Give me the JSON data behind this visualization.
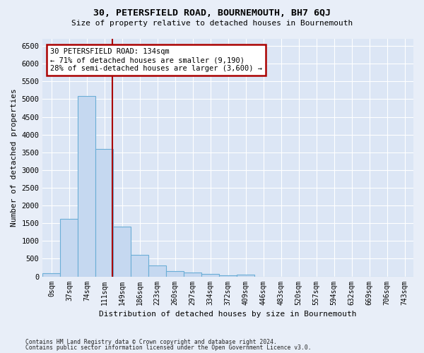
{
  "title1": "30, PETERSFIELD ROAD, BOURNEMOUTH, BH7 6QJ",
  "title2": "Size of property relative to detached houses in Bournemouth",
  "xlabel": "Distribution of detached houses by size in Bournemouth",
  "ylabel": "Number of detached properties",
  "footnote1": "Contains HM Land Registry data © Crown copyright and database right 2024.",
  "footnote2": "Contains public sector information licensed under the Open Government Licence v3.0.",
  "bar_labels": [
    "0sqm",
    "37sqm",
    "74sqm",
    "111sqm",
    "149sqm",
    "186sqm",
    "223sqm",
    "260sqm",
    "297sqm",
    "334sqm",
    "372sqm",
    "409sqm",
    "446sqm",
    "483sqm",
    "520sqm",
    "557sqm",
    "594sqm",
    "632sqm",
    "669sqm",
    "706sqm",
    "743sqm"
  ],
  "bar_values": [
    100,
    1620,
    5080,
    3600,
    1400,
    600,
    300,
    160,
    110,
    70,
    40,
    50,
    0,
    0,
    0,
    0,
    0,
    0,
    0,
    0,
    0
  ],
  "bar_color": "#c5d8f0",
  "bar_edge_color": "#6baed6",
  "bg_color": "#dce6f5",
  "grid_color": "#ffffff",
  "vline_x": 3.45,
  "vline_color": "#aa0000",
  "annotation_text": "30 PETERSFIELD ROAD: 134sqm\n← 71% of detached houses are smaller (9,190)\n28% of semi-detached houses are larger (3,600) →",
  "annotation_box_color": "#ffffff",
  "annotation_box_edge": "#aa0000",
  "fig_bg": "#e8eef8",
  "ylim": [
    0,
    6700
  ],
  "yticks": [
    0,
    500,
    1000,
    1500,
    2000,
    2500,
    3000,
    3500,
    4000,
    4500,
    5000,
    5500,
    6000,
    6500
  ]
}
